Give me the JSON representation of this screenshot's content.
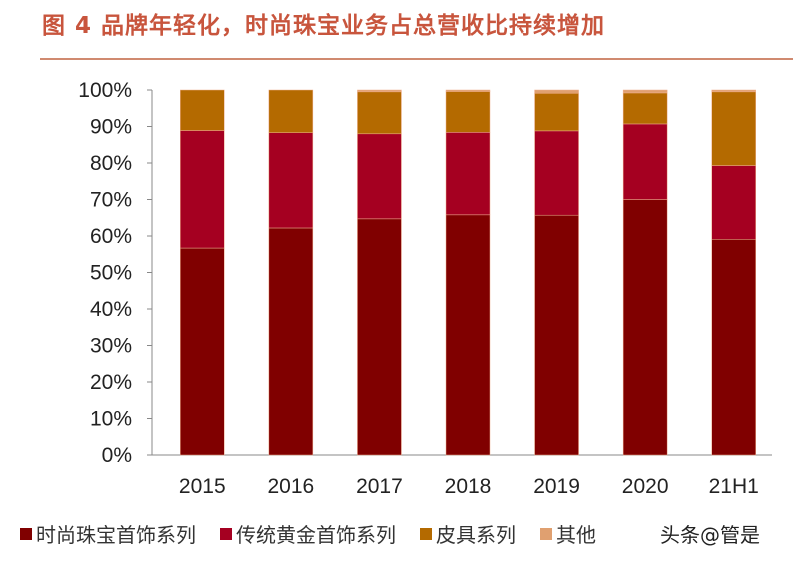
{
  "chart_data": {
    "type": "bar",
    "stacked": true,
    "title": "图 4  品牌年轻化，时尚珠宝业务占总营收比持续增加",
    "categories": [
      "2015",
      "2016",
      "2017",
      "2018",
      "2019",
      "2020",
      "21H1"
    ],
    "ylim": [
      0,
      100
    ],
    "yticks": [
      "0%",
      "10%",
      "20%",
      "30%",
      "40%",
      "50%",
      "60%",
      "70%",
      "80%",
      "90%",
      "100%"
    ],
    "grid": false,
    "legend_position": "bottom",
    "series": [
      {
        "name": "时尚珠宝首饰系列",
        "color": "#800000",
        "values": [
          56.7,
          62.2,
          64.7,
          65.8,
          65.7,
          70.0,
          59.1
        ]
      },
      {
        "name": "传统黄金首饰系列",
        "color": "#a50021",
        "values": [
          32.2,
          26.1,
          23.3,
          22.6,
          23.1,
          20.7,
          20.2
        ]
      },
      {
        "name": "皮具系列",
        "color": "#b46a00",
        "values": [
          11.1,
          11.7,
          11.5,
          11.2,
          10.3,
          8.5,
          20.2
        ]
      },
      {
        "name": "其他",
        "color": "#e0a070",
        "values": [
          0,
          0,
          0.5,
          0.4,
          0.9,
          0.8,
          0.5
        ]
      }
    ]
  },
  "watermark": "头条@管是"
}
